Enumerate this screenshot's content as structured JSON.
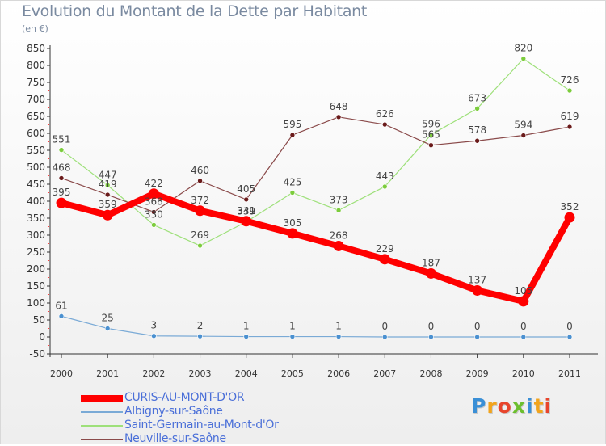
{
  "header": {
    "title": "Evolution du Montant de la Dette par Habitant",
    "subtitle": "(en €)"
  },
  "logo": {
    "text": "Proxiti",
    "letter_colors": [
      "#3a8fd6",
      "#f2a41c",
      "#e8452c",
      "#6cbf2e",
      "#3a8fd6",
      "#f2a41c",
      "#e8452c"
    ]
  },
  "chart_data": {
    "type": "line",
    "title": "Evolution du Montant de la Dette par Habitant",
    "subtitle": "(en €)",
    "xlabel": "",
    "ylabel": "",
    "x": [
      "2000",
      "2001",
      "2002",
      "2003",
      "2004",
      "2005",
      "2006",
      "2007",
      "2008",
      "2009",
      "2010",
      "2011"
    ],
    "ylim": [
      -50,
      850
    ],
    "yticks": [
      -50,
      0,
      50,
      100,
      150,
      200,
      250,
      300,
      350,
      400,
      450,
      500,
      550,
      600,
      650,
      700,
      750,
      800,
      850
    ],
    "grid": false,
    "legend_position": "bottom-left",
    "series": [
      {
        "name": "CURIS-AU-MONT-D'OR",
        "color": "#ff0000",
        "marker_color": "#ff0000",
        "emphasis": "thick",
        "values": [
          395,
          359,
          422,
          372,
          341,
          305,
          268,
          229,
          187,
          137,
          105,
          352
        ],
        "labels": [
          "395",
          "359",
          "422",
          "372",
          "341",
          "305",
          "268",
          "229",
          "187",
          "137",
          "105",
          "352"
        ]
      },
      {
        "name": "Albigny-sur-Saône",
        "color": "#7aaad6",
        "marker_color": "#4a90d0",
        "emphasis": "thin",
        "values": [
          61,
          25,
          3,
          2,
          1,
          1,
          1,
          0,
          0,
          0,
          0,
          0
        ],
        "labels": [
          "61",
          "25",
          "3",
          "2",
          "1",
          "1",
          "1",
          "0",
          "0",
          "0",
          "0",
          "0"
        ]
      },
      {
        "name": "Saint-Germain-au-Mont-d'Or",
        "color": "#9ee07a",
        "marker_color": "#7ccc3c",
        "emphasis": "thin",
        "values": [
          551,
          447,
          330,
          269,
          339,
          425,
          373,
          443,
          596,
          673,
          820,
          726
        ],
        "labels": [
          "551",
          "447",
          "330",
          "269",
          "339",
          "425",
          "373",
          "443",
          "596",
          "673",
          "820",
          "726"
        ]
      },
      {
        "name": "Neuville-sur-Saône",
        "color": "#8a4a4a",
        "marker_color": "#6a1a1a",
        "emphasis": "thin",
        "values": [
          468,
          419,
          368,
          460,
          405,
          595,
          648,
          626,
          565,
          578,
          594,
          619
        ],
        "labels": [
          "468",
          "419",
          "368",
          "460",
          "405",
          "595",
          "648",
          "626",
          "565",
          "578",
          "594",
          "619"
        ]
      }
    ]
  }
}
